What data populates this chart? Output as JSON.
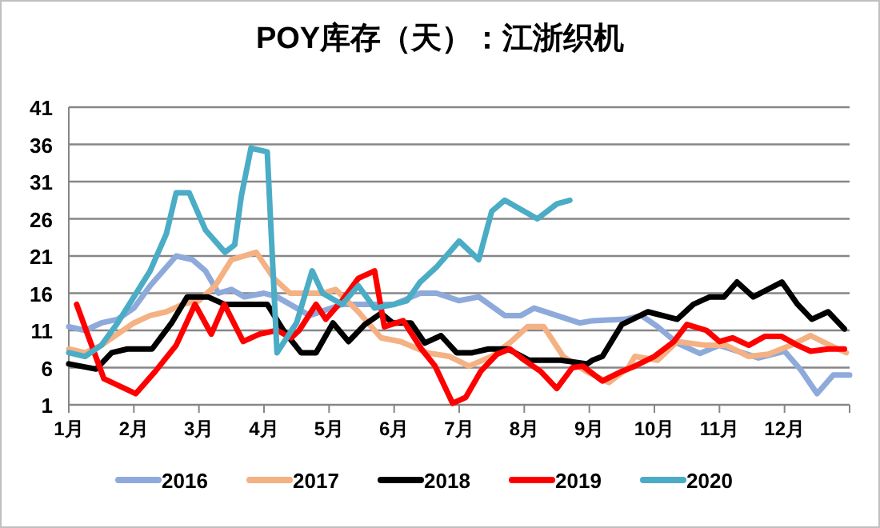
{
  "chart_data": {
    "type": "line",
    "title": "POY库存（天）：江浙织机",
    "xlim": [
      1,
      13
    ],
    "xticks": [
      {
        "value": 1,
        "label": "1月"
      },
      {
        "value": 2,
        "label": "2月"
      },
      {
        "value": 3,
        "label": "3月"
      },
      {
        "value": 4,
        "label": "4月"
      },
      {
        "value": 5,
        "label": "5月"
      },
      {
        "value": 6,
        "label": "6月"
      },
      {
        "value": 7,
        "label": "7月"
      },
      {
        "value": 8,
        "label": "8月"
      },
      {
        "value": 9,
        "label": "9月"
      },
      {
        "value": 10,
        "label": "10月"
      },
      {
        "value": 11,
        "label": "11月"
      },
      {
        "value": 12,
        "label": "12月"
      },
      {
        "value": 13,
        "label": null
      }
    ],
    "ylim": [
      1,
      41
    ],
    "yticks": [
      1,
      6,
      11,
      16,
      21,
      26,
      31,
      36,
      41
    ],
    "grid": "y",
    "legend": "bottom",
    "marker": "none",
    "line_style": "solid",
    "series": [
      {
        "name": "2016",
        "color": "#8eaadb",
        "x": [
          1.0,
          1.25,
          1.5,
          1.75,
          2.0,
          2.25,
          2.65,
          2.9,
          3.1,
          3.3,
          3.5,
          3.7,
          4.0,
          4.2,
          4.7,
          5.2,
          5.7,
          6.0,
          6.4,
          6.65,
          7.0,
          7.3,
          7.7,
          7.95,
          8.15,
          8.5,
          8.85,
          9.05,
          9.55,
          9.8,
          10.05,
          10.35,
          10.7,
          11.0,
          11.35,
          11.6,
          12.0,
          12.25,
          12.5,
          12.75,
          13.0
        ],
        "values": [
          11.5,
          11,
          12,
          12.5,
          14,
          17,
          21,
          20.5,
          19,
          16,
          16.5,
          15.5,
          16,
          15.5,
          13,
          14.5,
          14.5,
          14.5,
          16,
          16,
          15,
          15.5,
          13,
          13,
          14,
          13,
          12,
          12.3,
          12.5,
          13,
          11.5,
          9.3,
          7.9,
          9,
          8,
          7.3,
          8.2,
          5.7,
          2.5,
          5,
          5
        ]
      },
      {
        "name": "2017",
        "color": "#f4b183",
        "x": [
          1.0,
          1.25,
          1.5,
          1.75,
          2.0,
          2.25,
          2.5,
          2.75,
          3.0,
          3.25,
          3.5,
          3.88,
          4.15,
          4.4,
          4.9,
          5.1,
          5.45,
          5.8,
          6.1,
          6.5,
          6.85,
          7.15,
          7.5,
          7.8,
          8.05,
          8.3,
          8.6,
          8.95,
          9.3,
          9.6,
          9.7,
          10.05,
          10.35,
          10.8,
          11.1,
          11.45,
          11.75,
          12.1,
          12.4,
          12.7,
          12.95
        ],
        "values": [
          8.5,
          8,
          9,
          10.5,
          12,
          13,
          13.5,
          14.5,
          15,
          17,
          20.5,
          21.5,
          18,
          16,
          16,
          16.5,
          13.5,
          10,
          9.5,
          8,
          7.5,
          6.2,
          7.5,
          9.5,
          11.5,
          11.5,
          7.5,
          5.5,
          4,
          6,
          7.5,
          7,
          9.5,
          9,
          9,
          7.5,
          7.8,
          9,
          10.3,
          9,
          8
        ]
      },
      {
        "name": "2018",
        "color": "#000000",
        "x": [
          1.0,
          1.42,
          1.66,
          1.9,
          2.28,
          2.58,
          2.82,
          3.14,
          3.39,
          4.05,
          4.3,
          4.57,
          4.8,
          5.06,
          5.3,
          5.55,
          5.8,
          5.98,
          6.26,
          6.47,
          6.72,
          6.96,
          7.2,
          7.45,
          7.75,
          8.07,
          8.56,
          8.97,
          9.05,
          9.2,
          9.5,
          9.9,
          10.35,
          10.6,
          10.85,
          11.07,
          11.27,
          11.52,
          11.96,
          12.2,
          12.42,
          12.67,
          12.92
        ],
        "values": [
          6.5,
          5.8,
          8,
          8.5,
          8.5,
          12,
          15.5,
          15.5,
          14.5,
          14.5,
          11,
          8,
          8,
          12,
          9.5,
          11.8,
          13.3,
          12,
          12,
          9.3,
          10.3,
          8,
          8,
          8.5,
          8.5,
          7,
          7,
          6.5,
          7,
          7.5,
          11.8,
          13.5,
          12.5,
          14.5,
          15.5,
          15.5,
          17.5,
          15.5,
          17.5,
          14.5,
          12.5,
          13.5,
          11.2
        ]
      },
      {
        "name": "2019",
        "color": "#ff0000",
        "x": [
          1.12,
          1.54,
          2.03,
          2.33,
          2.65,
          2.94,
          3.19,
          3.39,
          3.68,
          3.93,
          4.2,
          4.42,
          4.54,
          4.8,
          4.95,
          5.2,
          5.45,
          5.7,
          5.85,
          6.14,
          6.42,
          6.63,
          6.9,
          7.1,
          7.33,
          7.58,
          7.78,
          8.0,
          8.25,
          8.5,
          8.74,
          8.9,
          9.2,
          9.5,
          9.7,
          10.0,
          10.3,
          10.5,
          10.8,
          11.0,
          11.2,
          11.45,
          11.7,
          11.95,
          12.2,
          12.4,
          12.67,
          12.92
        ],
        "values": [
          14.5,
          4.5,
          2.5,
          5.5,
          9,
          14.5,
          10.5,
          14.5,
          9.5,
          10.5,
          11,
          10,
          11,
          14.5,
          12.5,
          15,
          18,
          19,
          11.5,
          12.3,
          8.5,
          6.2,
          1.2,
          2,
          5.5,
          7.8,
          8.5,
          7,
          5.5,
          3.2,
          6,
          6.2,
          4.2,
          5.5,
          6.2,
          7.5,
          9.5,
          11.8,
          11,
          9.5,
          10,
          9,
          10.2,
          10.2,
          9,
          8.2,
          8.5,
          8.5
        ]
      },
      {
        "name": "2020",
        "color": "#4bacc6",
        "x": [
          1.0,
          1.25,
          1.5,
          1.75,
          2.0,
          2.25,
          2.5,
          2.65,
          2.85,
          3.1,
          3.4,
          3.55,
          3.65,
          3.8,
          4.05,
          4.2,
          4.5,
          4.74,
          4.9,
          5.2,
          5.45,
          5.7,
          6.0,
          6.2,
          6.4,
          6.65,
          7.0,
          7.3,
          7.5,
          7.7,
          8.2,
          8.5,
          8.7
        ],
        "values": [
          8,
          7.5,
          9,
          12,
          15.5,
          19,
          24,
          29.5,
          29.5,
          24.5,
          21.5,
          22.5,
          29,
          35.5,
          35,
          8,
          12,
          19,
          16,
          14.5,
          17,
          14,
          14.5,
          15,
          17.5,
          19.5,
          23,
          20.5,
          27,
          28.5,
          26,
          28,
          28.5
        ]
      }
    ]
  }
}
